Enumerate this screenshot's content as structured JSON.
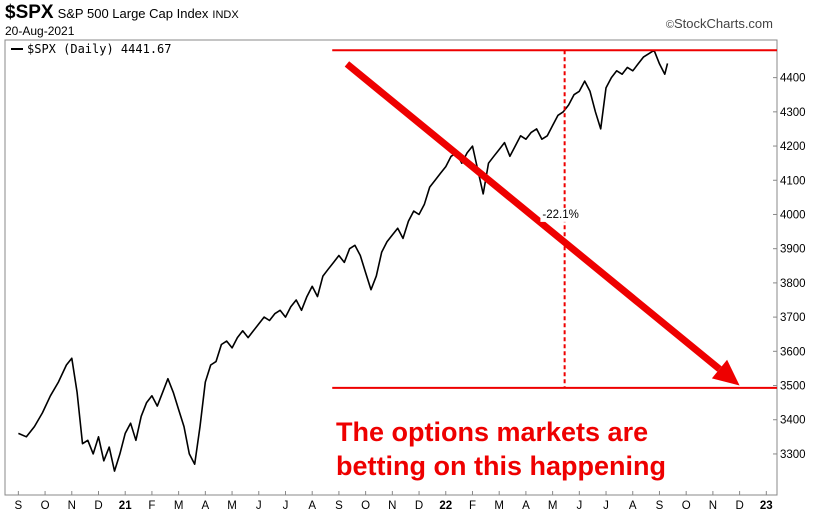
{
  "header": {
    "ticker": "$SPX",
    "index_name": "S&P 500 Large Cap Index",
    "index_code": "INDX",
    "date": "20-Aug-2021",
    "brand": "StockCharts.com",
    "copyright_symbol": "©"
  },
  "legend": {
    "label": "$SPX (Daily) 4441.67",
    "line_color": "#000000"
  },
  "annotation": {
    "line1": "The options markets are",
    "line2": "betting on this happening",
    "color": "#ee0000"
  },
  "chart_data": {
    "type": "line",
    "title": "$SPX S&P 500 Large Cap Index INDX",
    "subtitle": "20-Aug-2021",
    "series": [
      {
        "name": "$SPX (Daily)",
        "last_value": 4441.67,
        "color": "#000000",
        "points": [
          [
            0.0,
            3360
          ],
          [
            0.3,
            3350
          ],
          [
            0.6,
            3380
          ],
          [
            0.9,
            3420
          ],
          [
            1.2,
            3470
          ],
          [
            1.5,
            3510
          ],
          [
            1.8,
            3560
          ],
          [
            2.0,
            3580
          ],
          [
            2.2,
            3480
          ],
          [
            2.4,
            3330
          ],
          [
            2.6,
            3340
          ],
          [
            2.8,
            3300
          ],
          [
            3.0,
            3350
          ],
          [
            3.2,
            3280
          ],
          [
            3.4,
            3320
          ],
          [
            3.6,
            3250
          ],
          [
            3.8,
            3300
          ],
          [
            4.0,
            3360
          ],
          [
            4.2,
            3390
          ],
          [
            4.4,
            3340
          ],
          [
            4.6,
            3410
          ],
          [
            4.8,
            3450
          ],
          [
            5.0,
            3470
          ],
          [
            5.2,
            3440
          ],
          [
            5.4,
            3480
          ],
          [
            5.6,
            3520
          ],
          [
            5.8,
            3480
          ],
          [
            6.0,
            3430
          ],
          [
            6.2,
            3380
          ],
          [
            6.4,
            3300
          ],
          [
            6.6,
            3270
          ],
          [
            6.8,
            3380
          ],
          [
            7.0,
            3510
          ],
          [
            7.2,
            3560
          ],
          [
            7.4,
            3570
          ],
          [
            7.6,
            3620
          ],
          [
            7.8,
            3630
          ],
          [
            8.0,
            3610
          ],
          [
            8.2,
            3640
          ],
          [
            8.4,
            3660
          ],
          [
            8.6,
            3640
          ],
          [
            8.8,
            3660
          ],
          [
            9.0,
            3680
          ],
          [
            9.2,
            3700
          ],
          [
            9.4,
            3690
          ],
          [
            9.6,
            3710
          ],
          [
            9.8,
            3720
          ],
          [
            10.0,
            3700
          ],
          [
            10.2,
            3730
          ],
          [
            10.4,
            3750
          ],
          [
            10.6,
            3720
          ],
          [
            10.8,
            3760
          ],
          [
            11.0,
            3790
          ],
          [
            11.2,
            3760
          ],
          [
            11.4,
            3820
          ],
          [
            11.6,
            3840
          ],
          [
            11.8,
            3860
          ],
          [
            12.0,
            3880
          ],
          [
            12.2,
            3860
          ],
          [
            12.4,
            3900
          ],
          [
            12.6,
            3910
          ],
          [
            12.8,
            3880
          ],
          [
            13.0,
            3830
          ],
          [
            13.2,
            3780
          ],
          [
            13.4,
            3820
          ],
          [
            13.6,
            3890
          ],
          [
            13.8,
            3920
          ],
          [
            14.0,
            3940
          ],
          [
            14.2,
            3960
          ],
          [
            14.4,
            3930
          ],
          [
            14.6,
            3980
          ],
          [
            14.8,
            4010
          ],
          [
            15.0,
            4000
          ],
          [
            15.2,
            4030
          ],
          [
            15.4,
            4080
          ],
          [
            15.6,
            4100
          ],
          [
            15.8,
            4120
          ],
          [
            16.0,
            4140
          ],
          [
            16.2,
            4170
          ],
          [
            16.4,
            4180
          ],
          [
            16.6,
            4150
          ],
          [
            16.8,
            4180
          ],
          [
            17.0,
            4200
          ],
          [
            17.2,
            4130
          ],
          [
            17.4,
            4060
          ],
          [
            17.6,
            4150
          ],
          [
            17.8,
            4170
          ],
          [
            18.0,
            4190
          ],
          [
            18.2,
            4210
          ],
          [
            18.4,
            4170
          ],
          [
            18.6,
            4200
          ],
          [
            18.8,
            4230
          ],
          [
            19.0,
            4220
          ],
          [
            19.2,
            4240
          ],
          [
            19.4,
            4250
          ],
          [
            19.6,
            4220
          ],
          [
            19.8,
            4230
          ],
          [
            20.0,
            4260
          ],
          [
            20.2,
            4290
          ],
          [
            20.4,
            4300
          ],
          [
            20.6,
            4320
          ],
          [
            20.8,
            4350
          ],
          [
            21.0,
            4360
          ],
          [
            21.2,
            4390
          ],
          [
            21.4,
            4360
          ],
          [
            21.6,
            4300
          ],
          [
            21.8,
            4250
          ],
          [
            22.0,
            4370
          ],
          [
            22.2,
            4400
          ],
          [
            22.4,
            4420
          ],
          [
            22.6,
            4410
          ],
          [
            22.8,
            4430
          ],
          [
            23.0,
            4420
          ],
          [
            23.2,
            4440
          ],
          [
            23.4,
            4460
          ],
          [
            23.6,
            4470
          ],
          [
            23.8,
            4480
          ],
          [
            24.0,
            4440
          ],
          [
            24.2,
            4410
          ],
          [
            24.3,
            4441.67
          ]
        ]
      }
    ],
    "x_tick_labels": [
      "S",
      "O",
      "N",
      "D",
      "21",
      "F",
      "M",
      "A",
      "M",
      "J",
      "J",
      "A",
      "S",
      "O",
      "N",
      "D",
      "22",
      "F",
      "M",
      "A",
      "M",
      "J",
      "J",
      "A",
      "S",
      "O",
      "N",
      "D",
      "23"
    ],
    "x_tick_positions": [
      0,
      1,
      2,
      3,
      4,
      5,
      6,
      7,
      8,
      9,
      10,
      11,
      12,
      13,
      14,
      15,
      16,
      17,
      18,
      19,
      20,
      21,
      22,
      23,
      24,
      25,
      26,
      27,
      28
    ],
    "xlim": [
      -0.5,
      28.4
    ],
    "ylim": [
      3180,
      4510
    ],
    "y_ticks": [
      3300,
      3400,
      3500,
      3600,
      3700,
      3800,
      3900,
      4000,
      4100,
      4200,
      4300,
      4400
    ],
    "y_axis_side": "right",
    "grid": false,
    "overlays": {
      "top_level": 4480,
      "bottom_level": 3493,
      "hline_x_start": 11.75,
      "vline_x": 20.45,
      "drop_label": "-22.1%",
      "drop_label_at": [
        20.3,
        3990
      ],
      "arrow_from": [
        12.3,
        4440
      ],
      "arrow_to": [
        27.0,
        3500
      ],
      "color": "#ee0000"
    }
  }
}
